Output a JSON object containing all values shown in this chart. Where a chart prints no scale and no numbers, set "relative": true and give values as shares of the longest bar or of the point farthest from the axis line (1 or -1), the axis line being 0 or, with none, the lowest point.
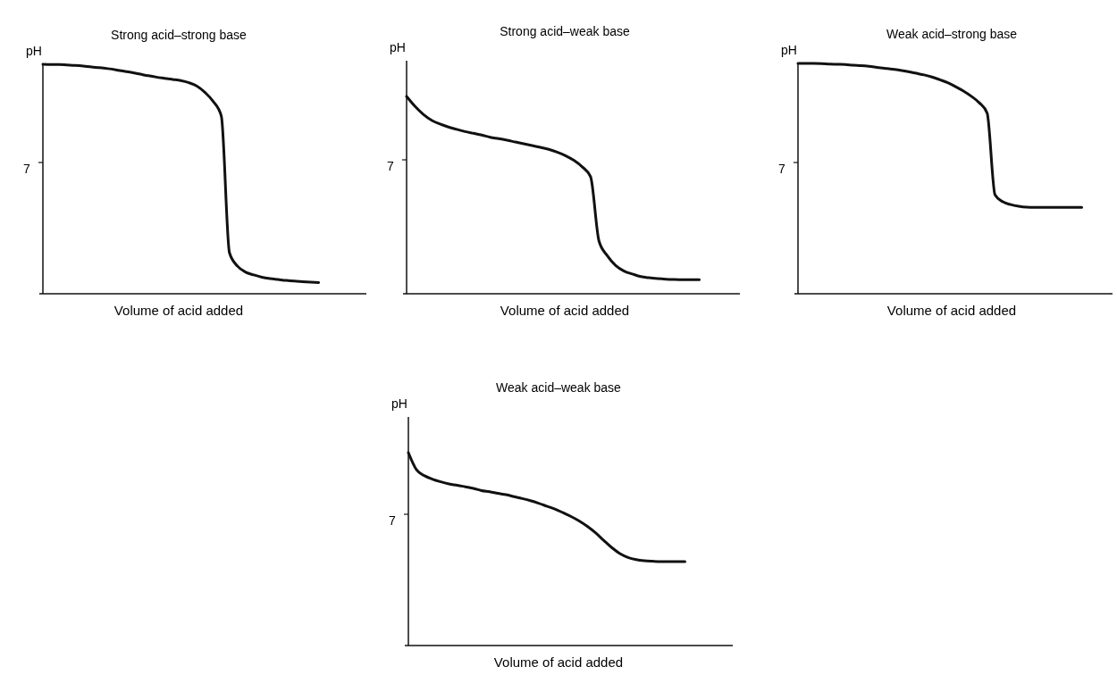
{
  "chart_data": [
    {
      "type": "line",
      "title": "Strong acid–strong base",
      "xlabel": "Volume of acid added",
      "ylabel": "pH",
      "relative": true,
      "categories": [
        null,
        null,
        null,
        null,
        null,
        null,
        null,
        null,
        null,
        null,
        null,
        null,
        null,
        null,
        null,
        null,
        null,
        null,
        null,
        null,
        null,
        null,
        null,
        null,
        null,
        null,
        null,
        null,
        null,
        null,
        null,
        null,
        null,
        null,
        null,
        null,
        null,
        null,
        null,
        null
      ],
      "series": [
        {
          "color": "#111111",
          "values": [
            1.0,
            0.999,
            0.999,
            0.997,
            0.995,
            0.992,
            0.988,
            0.985,
            0.981,
            0.976,
            0.97,
            0.964,
            0.957,
            0.95,
            0.944,
            0.939,
            0.934,
            0.929,
            0.92,
            0.905,
            0.877,
            0.838,
            0.774,
            0.179,
            0.12,
            0.094,
            0.082,
            0.072,
            0.066,
            0.062,
            0.058,
            0.055,
            0.053,
            0.051,
            0.049,
            null,
            null,
            null,
            null,
            null
          ]
        }
      ],
      "annotations": [
        "7"
      ]
    },
    {
      "type": "line",
      "title": "Strong acid–weak base",
      "xlabel": "Volume of acid added",
      "ylabel": "pH",
      "relative": true,
      "categories": [
        null,
        null,
        null,
        null,
        null,
        null,
        null,
        null,
        null,
        null,
        null,
        null,
        null,
        null,
        null,
        null,
        null,
        null,
        null,
        null,
        null,
        null,
        null,
        null,
        null,
        null,
        null,
        null,
        null,
        null,
        null,
        null,
        null,
        null,
        null,
        null,
        null,
        null,
        null,
        null
      ],
      "series": [
        {
          "color": "#111111",
          "values": [
            1.0,
            0.95,
            0.909,
            0.879,
            0.86,
            0.845,
            0.833,
            0.822,
            0.813,
            0.804,
            0.793,
            0.786,
            0.778,
            0.769,
            0.76,
            0.751,
            0.742,
            0.732,
            0.718,
            0.7,
            0.676,
            0.643,
            0.593,
            0.268,
            0.193,
            0.143,
            0.115,
            0.1,
            0.087,
            0.081,
            0.077,
            0.074,
            0.072,
            0.071,
            0.071,
            0.071,
            null,
            null,
            null,
            null
          ]
        }
      ],
      "annotations": [
        "7"
      ]
    },
    {
      "type": "line",
      "title": "Weak acid–strong base",
      "xlabel": "Volume of acid added",
      "ylabel": "pH",
      "relative": true,
      "categories": [
        null,
        null,
        null,
        null,
        null,
        null,
        null,
        null,
        null,
        null,
        null,
        null,
        null,
        null,
        null,
        null,
        null,
        null,
        null,
        null,
        null,
        null,
        null,
        null,
        null,
        null,
        null,
        null,
        null,
        null,
        null,
        null,
        null,
        null,
        null,
        null,
        null,
        null,
        null,
        null
      ],
      "series": [
        {
          "color": "#111111",
          "values": [
            1.0,
            1.0,
            1.0,
            0.999,
            0.997,
            0.996,
            0.995,
            0.992,
            0.99,
            0.987,
            0.983,
            0.979,
            0.975,
            0.97,
            0.964,
            0.957,
            0.95,
            0.941,
            0.929,
            0.916,
            0.899,
            0.88,
            0.857,
            0.829,
            0.784,
            0.429,
            0.399,
            0.387,
            0.38,
            0.376,
            0.375,
            0.375,
            0.375,
            0.375,
            0.375,
            0.375,
            0.375,
            null,
            null,
            null
          ]
        }
      ],
      "annotations": [
        "7"
      ]
    },
    {
      "type": "line",
      "title": "Weak acid–weak base",
      "xlabel": "Volume of acid added",
      "ylabel": "pH",
      "relative": true,
      "categories": [
        null,
        null,
        null,
        null,
        null,
        null,
        null,
        null,
        null,
        null,
        null,
        null,
        null,
        null,
        null,
        null,
        null,
        null,
        null,
        null,
        null,
        null,
        null,
        null,
        null,
        null,
        null,
        null,
        null,
        null,
        null,
        null,
        null,
        null,
        null,
        null,
        null,
        null,
        null,
        null
      ],
      "series": [
        {
          "color": "#111111",
          "values": [
            1.0,
            0.911,
            0.88,
            0.862,
            0.849,
            0.838,
            0.831,
            0.823,
            0.815,
            0.803,
            0.797,
            0.789,
            0.782,
            0.772,
            0.762,
            0.751,
            0.738,
            0.723,
            0.708,
            0.689,
            0.669,
            0.646,
            0.618,
            0.585,
            0.546,
            0.508,
            0.477,
            0.457,
            0.446,
            0.44,
            0.437,
            0.435,
            0.435,
            0.435,
            0.435,
            null,
            null,
            null,
            null,
            null
          ]
        }
      ],
      "annotations": [
        "7"
      ]
    }
  ]
}
